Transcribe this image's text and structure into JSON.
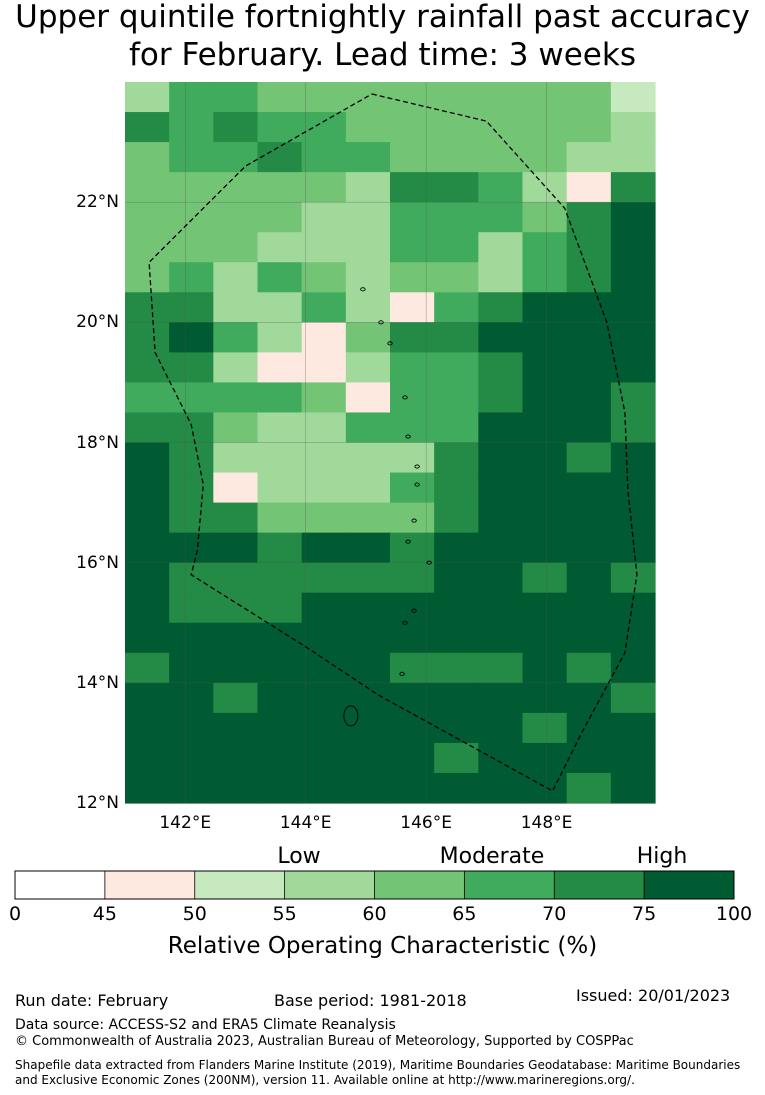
{
  "title_line1": "Upper quintile fortnightly rainfall past accuracy",
  "title_line2": "for February. Lead time: 3 weeks",
  "map": {
    "lon_range": [
      141.0,
      149.8
    ],
    "lat_range": [
      12.0,
      24.0
    ],
    "lat_ticks": [
      {
        "value": 22,
        "label": "22°N"
      },
      {
        "value": 20,
        "label": "20°N"
      },
      {
        "value": 18,
        "label": "18°N"
      },
      {
        "value": 16,
        "label": "16°N"
      },
      {
        "value": 14,
        "label": "14°N"
      },
      {
        "value": 12,
        "label": "12°N"
      }
    ],
    "lon_ticks": [
      {
        "value": 142,
        "label": "142°E"
      },
      {
        "value": 144,
        "label": "144°E"
      },
      {
        "value": 146,
        "label": "146°E"
      },
      {
        "value": 148,
        "label": "148°E"
      }
    ],
    "eez_boundary": [
      [
        145.1,
        23.8
      ],
      [
        147.0,
        23.35
      ],
      [
        148.3,
        21.9
      ],
      [
        149.0,
        20.0
      ],
      [
        149.3,
        18.5
      ],
      [
        149.35,
        17.2
      ],
      [
        149.5,
        15.8
      ],
      [
        149.3,
        14.5
      ],
      [
        148.6,
        13.2
      ],
      [
        148.1,
        12.2
      ],
      [
        145.2,
        13.8
      ],
      [
        144.0,
        14.6
      ],
      [
        142.1,
        15.8
      ],
      [
        142.2,
        16.2
      ],
      [
        142.3,
        17.3
      ],
      [
        142.1,
        18.3
      ],
      [
        141.5,
        19.5
      ],
      [
        141.4,
        21.0
      ],
      [
        143.0,
        22.6
      ],
      [
        145.1,
        23.8
      ]
    ],
    "islands": [
      [
        144.95,
        20.55
      ],
      [
        145.25,
        20.0
      ],
      [
        145.4,
        19.65
      ],
      [
        145.65,
        18.75
      ],
      [
        145.7,
        18.1
      ],
      [
        145.85,
        17.6
      ],
      [
        145.85,
        17.3
      ],
      [
        145.8,
        16.7
      ],
      [
        145.7,
        16.35
      ],
      [
        146.05,
        16.0
      ],
      [
        145.8,
        15.2
      ],
      [
        145.65,
        15.0
      ],
      [
        145.6,
        14.15
      ],
      [
        144.75,
        13.45
      ]
    ]
  },
  "grid_levels": [
    [
      1,
      3,
      3,
      2,
      2,
      2,
      2,
      2,
      2,
      2,
      2,
      0
    ],
    [
      4,
      3,
      4,
      3,
      3,
      2,
      2,
      2,
      2,
      2,
      2,
      1
    ],
    [
      2,
      3,
      3,
      4,
      3,
      3,
      2,
      2,
      2,
      2,
      1,
      1
    ],
    [
      2,
      2,
      2,
      2,
      2,
      1,
      4,
      4,
      3,
      1,
      -1,
      4
    ],
    [
      2,
      2,
      2,
      2,
      1,
      1,
      3,
      3,
      3,
      2,
      4,
      5
    ],
    [
      2,
      2,
      2,
      1,
      1,
      1,
      3,
      3,
      1,
      3,
      4,
      5
    ],
    [
      2,
      3,
      1,
      3,
      2,
      1,
      2,
      2,
      1,
      3,
      4,
      6
    ],
    [
      4,
      4,
      1,
      1,
      3,
      1,
      -1,
      3,
      4,
      5,
      5,
      6
    ],
    [
      4,
      5,
      3,
      1,
      -1,
      2,
      4,
      4,
      5,
      6,
      6,
      6
    ],
    [
      4,
      4,
      1,
      -1,
      -1,
      1,
      3,
      3,
      4,
      5,
      5,
      5
    ],
    [
      3,
      3,
      3,
      3,
      2,
      -1,
      3,
      3,
      4,
      5,
      5,
      4
    ],
    [
      4,
      4,
      2,
      1,
      1,
      3,
      3,
      3,
      5,
      5,
      5,
      4
    ],
    [
      5,
      4,
      1,
      1,
      1,
      1,
      1,
      4,
      5,
      5,
      4,
      5
    ],
    [
      5,
      4,
      -1,
      1,
      1,
      1,
      3,
      4,
      5,
      5,
      5,
      5
    ],
    [
      5,
      4,
      4,
      2,
      2,
      2,
      2,
      4,
      5,
      5,
      5,
      5
    ],
    [
      5,
      5,
      5,
      4,
      5,
      5,
      4,
      5,
      5,
      5,
      5,
      5
    ],
    [
      5,
      4,
      4,
      4,
      4,
      4,
      4,
      6,
      5,
      4,
      5,
      4
    ],
    [
      5,
      4,
      4,
      4,
      5,
      5,
      5,
      6,
      6,
      6,
      6,
      6
    ],
    [
      5,
      5,
      5,
      5,
      5,
      5,
      5,
      5,
      5,
      6,
      5,
      5
    ],
    [
      4,
      5,
      5,
      5,
      5,
      6,
      4,
      4,
      4,
      5,
      4,
      5
    ],
    [
      5,
      5,
      4,
      5,
      5,
      5,
      5,
      5,
      5,
      5,
      5,
      4
    ],
    [
      5,
      5,
      5,
      6,
      5,
      5,
      5,
      5,
      5,
      4,
      5,
      5
    ],
    [
      5,
      6,
      5,
      5,
      5,
      5,
      5,
      4,
      5,
      5,
      5,
      5
    ],
    [
      6,
      6,
      6,
      6,
      5,
      5,
      5,
      5,
      5,
      5,
      4,
      5
    ]
  ],
  "colorbar": {
    "bins": [
      {
        "from": 0,
        "to": 45,
        "color": "#ffffff"
      },
      {
        "from": 45,
        "to": 50,
        "color": "#fee9e0"
      },
      {
        "from": 50,
        "to": 55,
        "color": "#c7e9c0"
      },
      {
        "from": 55,
        "to": 60,
        "color": "#a1d99b"
      },
      {
        "from": 60,
        "to": 65,
        "color": "#74c476"
      },
      {
        "from": 65,
        "to": 70,
        "color": "#41ab5d"
      },
      {
        "from": 70,
        "to": 75,
        "color": "#238b45"
      },
      {
        "from": 75,
        "to": 100,
        "color": "#005a32"
      }
    ],
    "ticks": [
      "0",
      "45",
      "50",
      "55",
      "60",
      "65",
      "70",
      "75",
      "100"
    ],
    "band_labels": {
      "low": "Low",
      "moderate": "Moderate",
      "high": "High"
    },
    "label": "Relative Operating Characteristic (%)"
  },
  "footer": {
    "run_date": "Run date: February",
    "base_period": "Base period: 1981-2018",
    "issued": "Issued: 20/01/2023",
    "data_source": "Data source: ACCESS-S2 and ERA5 Climate Reanalysis",
    "copyright": "© Commonwealth of Australia 2023, Australian Bureau of Meteorology, Supported by COSPPac",
    "shapefile": "Shapefile data extracted from Flanders Marine Institute (2019), Maritime Boundaries Geodatabase: Maritime Boundaries and Exclusive Economic Zones (200NM), version 11. Available online at http://www.marineregions.org/."
  }
}
